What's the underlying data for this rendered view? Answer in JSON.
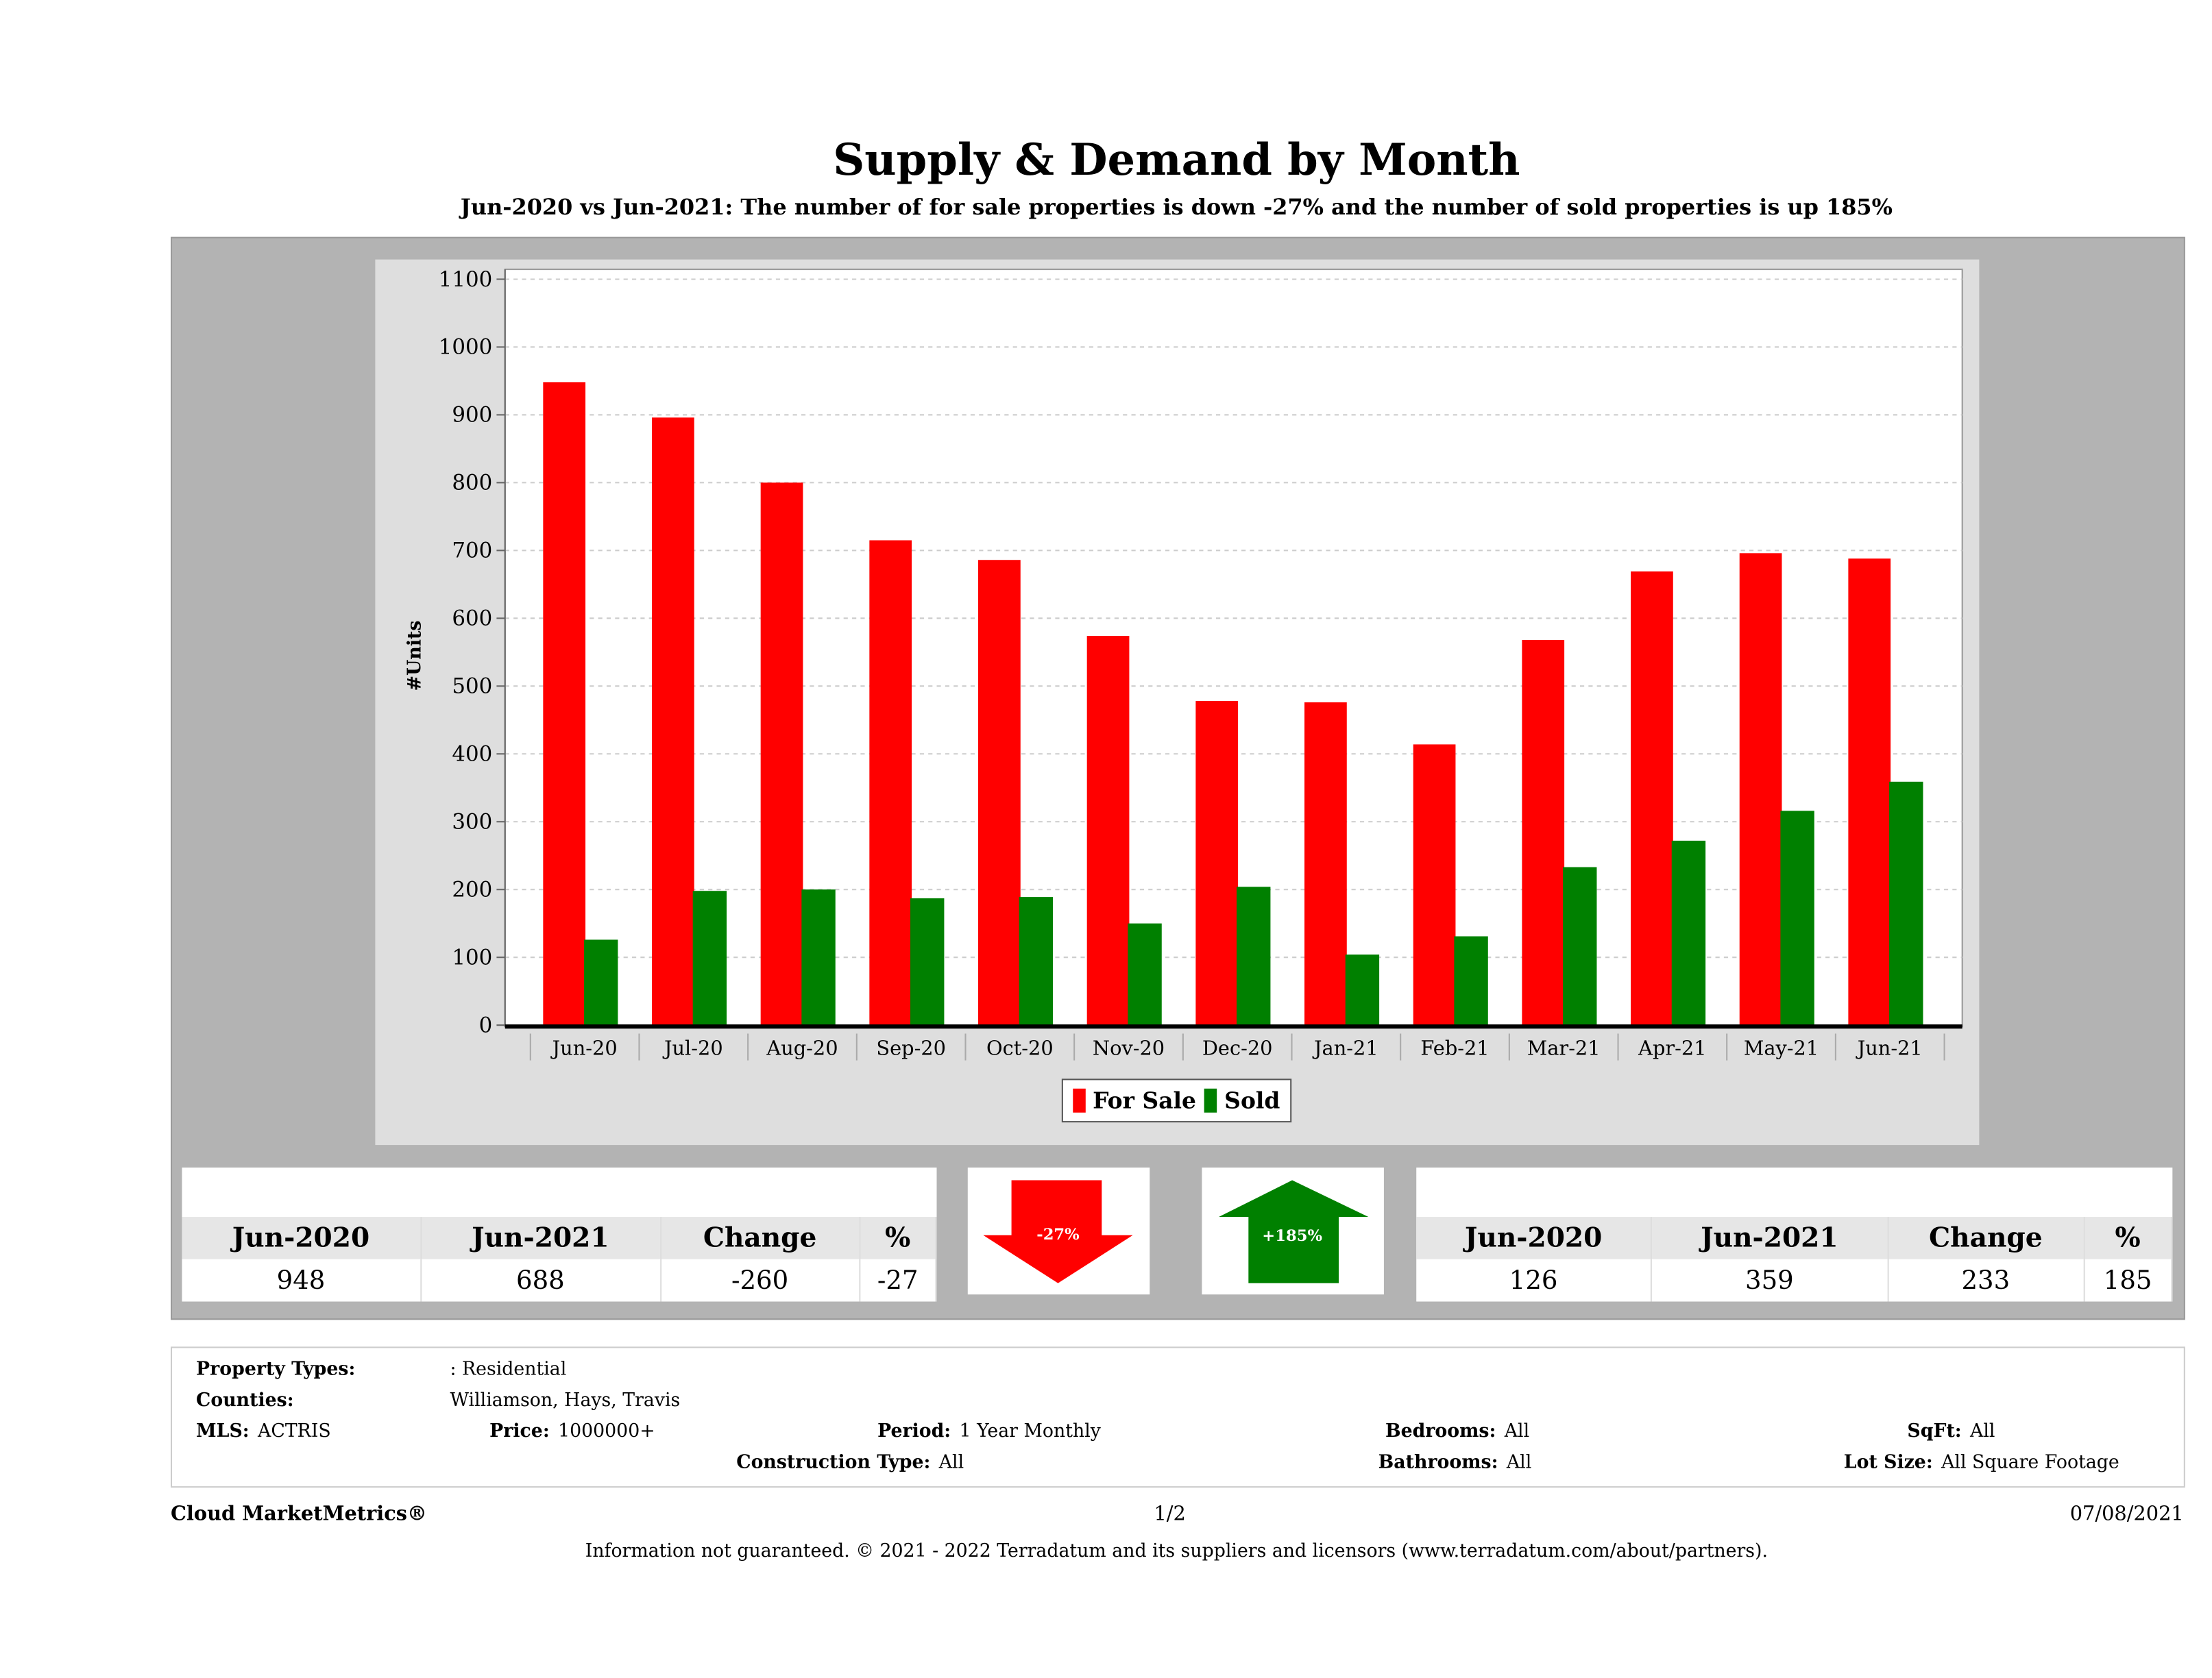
{
  "title": "Supply & Demand by Month",
  "subtitle": "Jun-2020 vs Jun-2021: The number of for sale properties is down -27% and the number of sold properties is up 185%",
  "chart_data": {
    "type": "bar",
    "ylabel": "#Units",
    "xlabel": "",
    "ylim": [
      0,
      1100
    ],
    "yticks": [
      "0",
      "100",
      "200",
      "300",
      "400",
      "500",
      "600",
      "700",
      "800",
      "900",
      "1000",
      "1100"
    ],
    "grid": true,
    "legend_placement": "bottom-center",
    "categories": [
      "Jun-20",
      "Jul-20",
      "Aug-20",
      "Sep-20",
      "Oct-20",
      "Nov-20",
      "Dec-20",
      "Jan-21",
      "Feb-21",
      "Mar-21",
      "Apr-21",
      "May-21",
      "Jun-21"
    ],
    "series": [
      {
        "name": "For Sale",
        "color": "#ff0000",
        "values": [
          948,
          896,
          800,
          715,
          686,
          574,
          478,
          476,
          414,
          568,
          669,
          696,
          688
        ]
      },
      {
        "name": "Sold",
        "color": "#008000",
        "values": [
          126,
          198,
          200,
          187,
          189,
          150,
          204,
          104,
          131,
          233,
          272,
          316,
          359
        ]
      }
    ]
  },
  "for_sale_stats": {
    "headers": [
      "Jun-2020",
      "Jun-2021",
      "Change",
      "%"
    ],
    "values": [
      "948",
      "688",
      "-260",
      "-27"
    ],
    "badge": "-27%",
    "color": "#ff0000"
  },
  "sold_stats": {
    "headers": [
      "Jun-2020",
      "Jun-2021",
      "Change",
      "%"
    ],
    "values": [
      "126",
      "359",
      "233",
      "185"
    ],
    "badge": "+185%",
    "color": "#008000"
  },
  "info": {
    "property_types_label": "Property Types:",
    "property_types": ": Residential",
    "counties_label": "Counties:",
    "counties": "Williamson, Hays, Travis",
    "mls_label": "MLS:",
    "mls": "ACTRIS",
    "price_label": "Price:",
    "price": "1000000+",
    "period_label": "Period:",
    "period": "1 Year Monthly",
    "construction_label": "Construction Type:",
    "construction": "All",
    "bedrooms_label": "Bedrooms:",
    "bedrooms": "All",
    "bathrooms_label": "Bathrooms:",
    "bathrooms": "All",
    "sqft_label": "SqFt:",
    "sqft": "All",
    "lot_label": "Lot Size:",
    "lot": "All Square Footage"
  },
  "footer": {
    "brand": "Cloud MarketMetrics®",
    "page": "1/2",
    "date": "07/08/2021",
    "disclaimer": "Information not guaranteed. © 2021 - 2022 Terradatum and its suppliers and licensors (www.terradatum.com/about/partners)."
  }
}
